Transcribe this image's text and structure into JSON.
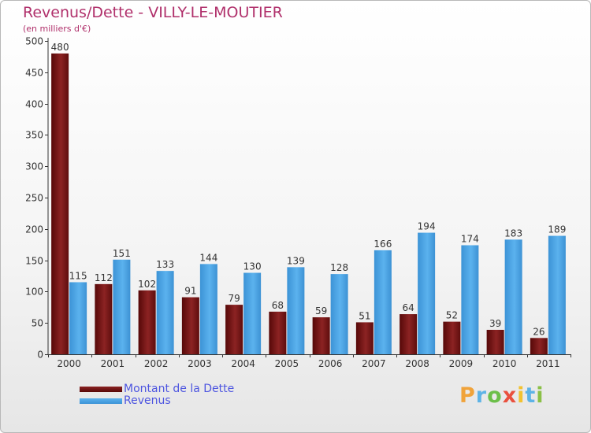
{
  "header": {
    "title": "Revenus/Dette - VILLY-LE-MOUTIER",
    "subtitle": "(en milliers d'€)"
  },
  "chart_data": {
    "type": "bar",
    "categories": [
      "2000",
      "2001",
      "2002",
      "2003",
      "2004",
      "2005",
      "2006",
      "2007",
      "2008",
      "2009",
      "2010",
      "2011"
    ],
    "series": [
      {
        "name": "Montant de la Dette",
        "color": "#7a1414",
        "values": [
          480,
          112,
          102,
          91,
          79,
          68,
          59,
          51,
          64,
          52,
          39,
          26
        ]
      },
      {
        "name": "Revenus",
        "color": "#4ea6e8",
        "values": [
          115,
          151,
          133,
          144,
          130,
          139,
          128,
          166,
          194,
          174,
          183,
          189
        ]
      }
    ],
    "ylim": [
      0,
      500
    ],
    "yticks": [
      0,
      50,
      100,
      150,
      200,
      250,
      300,
      350,
      400,
      450,
      500
    ],
    "grid": false,
    "legend": "bottom-left"
  },
  "legend": {
    "items": [
      {
        "label": "Montant de la Dette",
        "color": "#7a1414"
      },
      {
        "label": "Revenus",
        "color": "#4ea6e8"
      }
    ]
  },
  "logo": {
    "text": "Proxiti",
    "letters": [
      {
        "ch": "P",
        "color": "#f0a33a"
      },
      {
        "ch": "r",
        "color": "#5db3e6"
      },
      {
        "ch": "o",
        "color": "#6cbf4a"
      },
      {
        "ch": "x",
        "color": "#e9503e"
      },
      {
        "ch": "i",
        "color": "#f2c230"
      },
      {
        "ch": "t",
        "color": "#5db3e6"
      },
      {
        "ch": "i",
        "color": "#8ac046"
      }
    ]
  }
}
